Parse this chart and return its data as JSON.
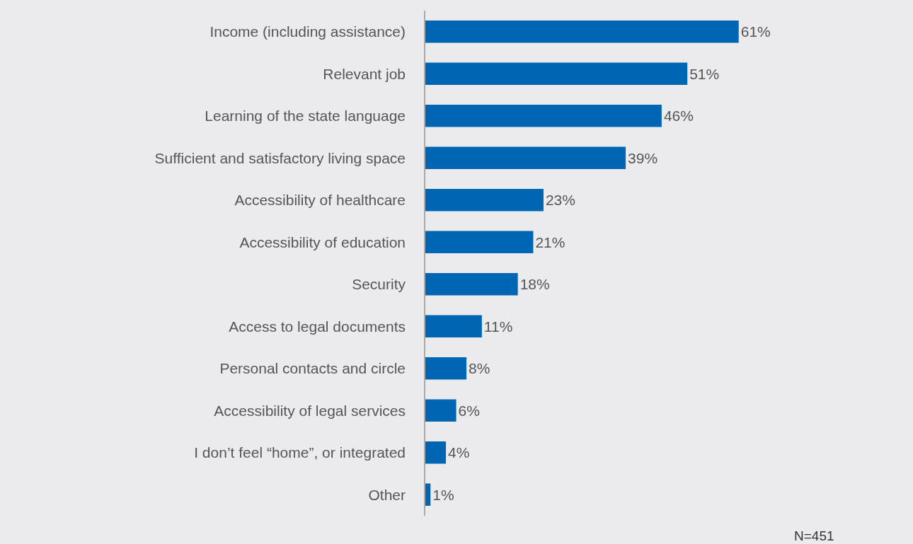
{
  "chart_data": {
    "type": "bar",
    "orientation": "horizontal",
    "categories": [
      "Income (including assistance)",
      "Relevant job",
      "Learning of the state language",
      "Sufficient and satisfactory living space",
      "Accessibility of healthcare",
      "Accessibility of education",
      "Security",
      "Access to legal documents",
      "Personal contacts and circle",
      "Accessibility of legal services",
      "I don’t feel “home”, or integrated",
      "Other"
    ],
    "values": [
      61,
      51,
      46,
      39,
      23,
      21,
      18,
      11,
      8,
      6,
      4,
      1
    ],
    "value_labels": [
      "61%",
      "51%",
      "46%",
      "39%",
      "23%",
      "21%",
      "18%",
      "11%",
      "8%",
      "6%",
      "4%",
      "1%"
    ],
    "color": "#0066b3",
    "tick_labels": "y",
    "grid": false,
    "legend": false,
    "annotations": [
      "N=451"
    ]
  }
}
